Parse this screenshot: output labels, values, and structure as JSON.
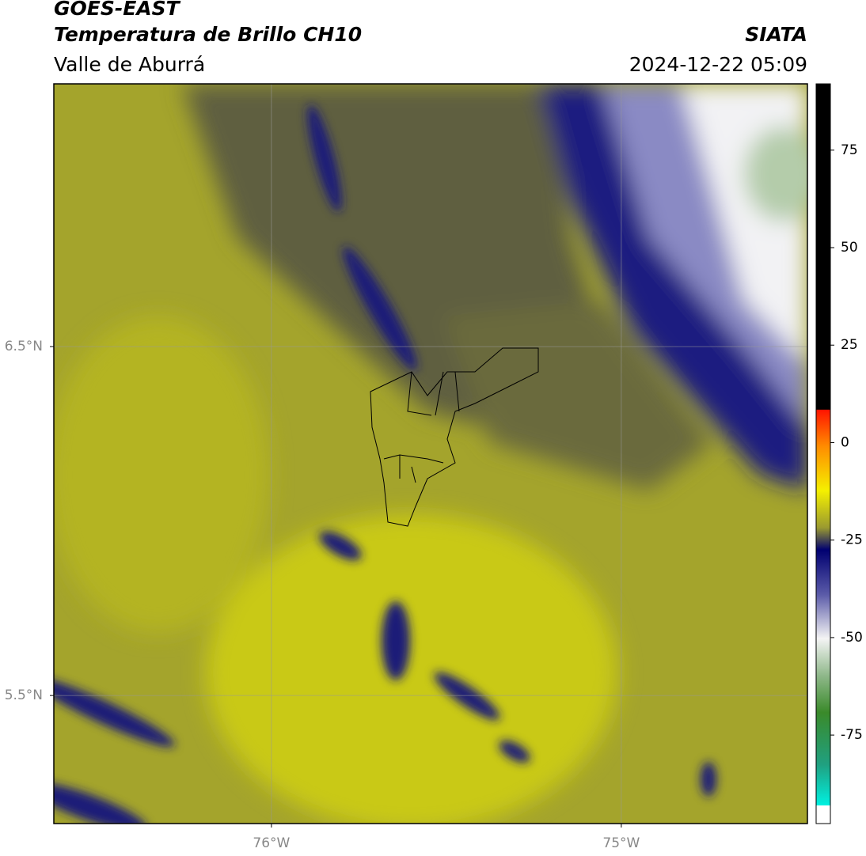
{
  "header": {
    "title": "GOES-EAST",
    "subtitle": "Temperatura de Brillo CH10",
    "region": "Valle de Aburrá",
    "source": "SIATA",
    "datetime": "2024-12-22 05:09"
  },
  "map": {
    "xlim": [
      -76.622,
      -74.468
    ],
    "ylim": [
      5.133,
      7.253
    ],
    "xticks": [
      {
        "value": -76,
        "label": "76°W"
      },
      {
        "value": -75,
        "label": "75°W"
      }
    ],
    "yticks": [
      {
        "value": 6.5,
        "label": "6.5°N"
      },
      {
        "value": 5.5,
        "label": "5.5°N"
      }
    ]
  },
  "colorbar": {
    "lim": [
      -97.7,
      92.0
    ],
    "ticks": [
      75,
      50,
      25,
      0,
      -25,
      -50,
      -75
    ]
  }
}
